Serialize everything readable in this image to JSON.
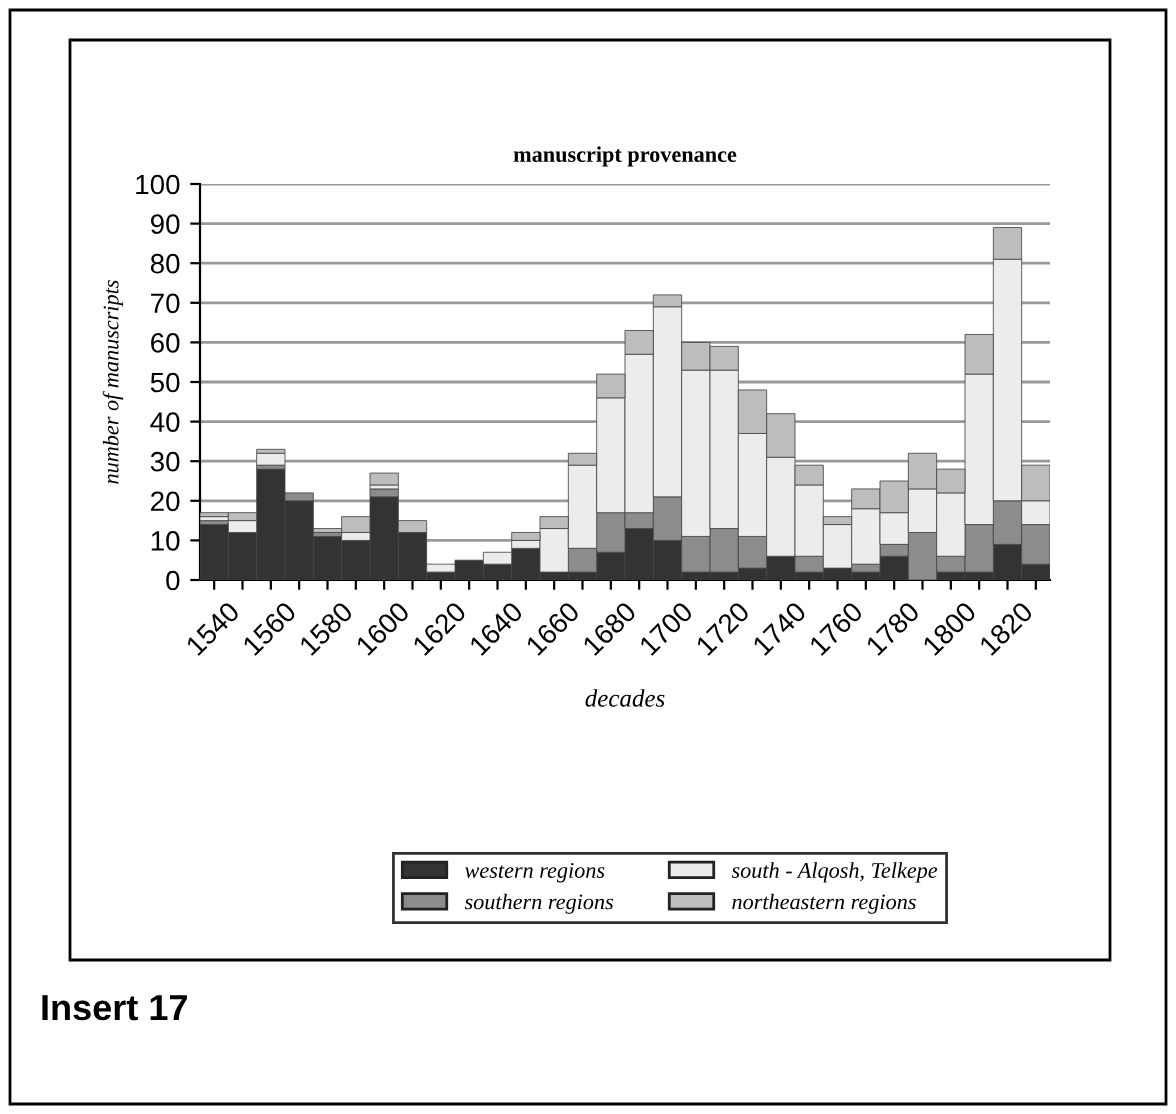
{
  "chart_data": {
    "type": "bar",
    "stacked": true,
    "title": "manuscript provenance",
    "xlabel": "decades",
    "ylabel": "number of manuscripts",
    "categories": [
      "1540",
      null,
      "1560",
      null,
      "1580",
      null,
      "1600",
      null,
      "1620",
      null,
      "1640",
      null,
      "1660",
      null,
      "1680",
      null,
      "1700",
      null,
      "1720",
      null,
      "1740",
      null,
      "1760",
      null,
      "1780",
      null,
      "1800",
      null,
      "1820",
      null
    ],
    "series": [
      {
        "name": "western regions",
        "color": "#333333",
        "values": [
          14,
          12,
          28,
          20,
          11,
          10,
          21,
          12,
          2,
          5,
          4,
          8,
          2,
          2,
          7,
          13,
          10,
          2,
          2,
          3,
          6,
          2,
          3,
          2,
          6,
          0,
          2,
          2,
          9,
          4
        ]
      },
      {
        "name": "southern regions",
        "color": "#8c8c8c",
        "values": [
          1,
          0,
          1,
          2,
          1,
          0,
          2,
          0,
          0,
          0,
          0,
          0,
          0,
          6,
          10,
          4,
          11,
          9,
          11,
          8,
          0,
          4,
          0,
          2,
          3,
          12,
          4,
          12,
          11,
          10
        ]
      },
      {
        "name": "south - Alqosh, Telkepe",
        "color": "#ececec",
        "values": [
          1,
          3,
          3,
          0,
          0,
          2,
          1,
          0,
          2,
          0,
          3,
          2,
          11,
          21,
          29,
          40,
          48,
          42,
          40,
          26,
          25,
          18,
          11,
          14,
          8,
          11,
          16,
          38,
          61,
          6
        ]
      },
      {
        "name": "northeastern regions",
        "color": "#bdbdbd",
        "values": [
          1,
          2,
          1,
          0,
          1,
          4,
          3,
          3,
          0,
          0,
          0,
          2,
          3,
          3,
          6,
          6,
          3,
          7,
          6,
          11,
          11,
          5,
          2,
          5,
          8,
          9,
          6,
          10,
          8,
          9
        ]
      }
    ],
    "ylim": [
      0,
      100
    ],
    "yticks": [
      0,
      10,
      20,
      30,
      40,
      50,
      60,
      70,
      80,
      90,
      100
    ],
    "grid": "y",
    "legend": "bottom",
    "annotations": [
      "Insert 17"
    ]
  }
}
